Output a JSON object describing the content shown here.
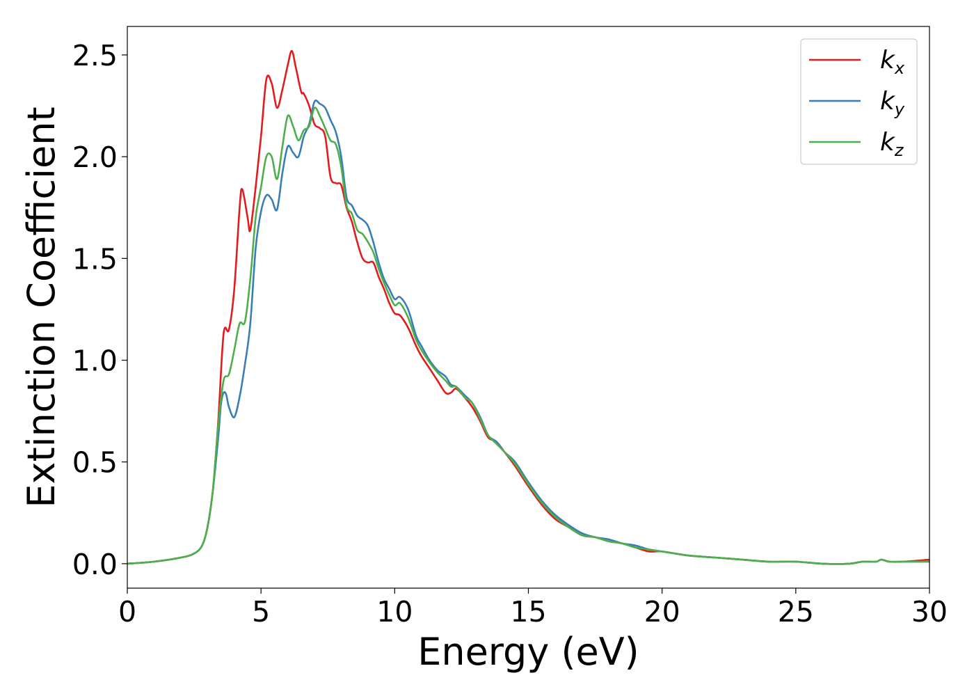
{
  "chart_data": {
    "type": "line",
    "title": "",
    "xlabel": "Energy (eV)",
    "ylabel": "Extinction Coefficient",
    "xlim": [
      0,
      30
    ],
    "ylim": [
      -0.12,
      2.64
    ],
    "xticks": [
      0,
      5,
      10,
      15,
      20,
      25,
      30
    ],
    "xtick_labels": [
      "0",
      "5",
      "10",
      "15",
      "20",
      "25",
      "30"
    ],
    "yticks": [
      0.0,
      0.5,
      1.0,
      1.5,
      2.0,
      2.5
    ],
    "ytick_labels": [
      "0.0",
      "0.5",
      "1.0",
      "1.5",
      "2.0",
      "2.5"
    ],
    "grid": false,
    "legend_position": "top-right",
    "series": [
      {
        "name": "k_x",
        "label_base": "k",
        "label_sub": "x",
        "color": "#e41a1c",
        "x": [
          0,
          1,
          2,
          2.5,
          2.8,
          3.0,
          3.2,
          3.4,
          3.6,
          3.8,
          4.0,
          4.2,
          4.3,
          4.5,
          4.6,
          4.8,
          5.0,
          5.2,
          5.4,
          5.6,
          5.8,
          6.0,
          6.15,
          6.3,
          6.5,
          6.6,
          6.8,
          7.0,
          7.2,
          7.4,
          7.6,
          7.8,
          8.0,
          8.2,
          8.4,
          8.6,
          8.8,
          9.0,
          9.2,
          9.4,
          9.6,
          9.8,
          10.0,
          10.2,
          10.5,
          10.8,
          11.0,
          11.3,
          11.6,
          11.9,
          12.1,
          12.3,
          12.6,
          12.9,
          13.2,
          13.5,
          13.8,
          14.1,
          14.5,
          15.0,
          15.5,
          16.0,
          16.5,
          17.0,
          17.5,
          18.0,
          18.5,
          19.0,
          19.5,
          20.0,
          21.0,
          22.0,
          23.0,
          24.0,
          25.0,
          26.0,
          27.0,
          27.5,
          28.0,
          28.2,
          28.5,
          29.0,
          30.0
        ],
        "y": [
          0.0,
          0.01,
          0.03,
          0.05,
          0.09,
          0.18,
          0.36,
          0.7,
          1.13,
          1.15,
          1.35,
          1.75,
          1.84,
          1.7,
          1.64,
          1.85,
          2.1,
          2.38,
          2.36,
          2.24,
          2.33,
          2.45,
          2.52,
          2.44,
          2.32,
          2.31,
          2.25,
          2.16,
          2.14,
          2.1,
          1.9,
          1.87,
          1.86,
          1.75,
          1.68,
          1.58,
          1.5,
          1.48,
          1.48,
          1.41,
          1.35,
          1.28,
          1.23,
          1.22,
          1.16,
          1.07,
          1.02,
          0.96,
          0.9,
          0.84,
          0.84,
          0.86,
          0.82,
          0.77,
          0.7,
          0.62,
          0.6,
          0.55,
          0.48,
          0.38,
          0.29,
          0.22,
          0.18,
          0.14,
          0.13,
          0.11,
          0.1,
          0.08,
          0.06,
          0.06,
          0.04,
          0.03,
          0.02,
          0.01,
          0.01,
          0.0,
          0.0,
          0.01,
          0.01,
          0.02,
          0.01,
          0.01,
          0.02
        ]
      },
      {
        "name": "k_y",
        "label_base": "k",
        "label_sub": "y",
        "color": "#377eb8",
        "x": [
          0,
          1,
          2,
          2.5,
          2.8,
          3.0,
          3.2,
          3.4,
          3.5,
          3.6,
          3.7,
          3.8,
          4.0,
          4.2,
          4.4,
          4.6,
          4.8,
          5.0,
          5.2,
          5.4,
          5.6,
          5.8,
          6.0,
          6.2,
          6.4,
          6.6,
          6.8,
          7.0,
          7.2,
          7.4,
          7.6,
          7.8,
          8.0,
          8.2,
          8.4,
          8.6,
          8.8,
          9.0,
          9.2,
          9.4,
          9.6,
          9.8,
          10.0,
          10.2,
          10.5,
          10.8,
          11.0,
          11.3,
          11.6,
          11.9,
          12.1,
          12.3,
          12.6,
          12.9,
          13.2,
          13.5,
          13.8,
          14.1,
          14.5,
          15.0,
          15.5,
          16.0,
          16.5,
          17.0,
          17.5,
          18.0,
          18.5,
          19.0,
          19.5,
          20.0,
          21.0,
          22.0,
          23.0,
          24.0,
          25.0,
          26.0,
          27.0,
          27.5,
          28.0,
          28.2,
          28.5,
          29.0,
          30.0
        ],
        "y": [
          0.0,
          0.01,
          0.03,
          0.05,
          0.09,
          0.18,
          0.36,
          0.62,
          0.78,
          0.84,
          0.83,
          0.77,
          0.72,
          0.82,
          0.98,
          1.18,
          1.55,
          1.73,
          1.81,
          1.79,
          1.74,
          1.92,
          2.05,
          2.02,
          2.0,
          2.1,
          2.16,
          2.27,
          2.26,
          2.24,
          2.18,
          2.12,
          2.0,
          1.8,
          1.76,
          1.71,
          1.69,
          1.66,
          1.58,
          1.48,
          1.4,
          1.35,
          1.3,
          1.31,
          1.25,
          1.12,
          1.07,
          1.0,
          0.95,
          0.92,
          0.88,
          0.87,
          0.83,
          0.79,
          0.72,
          0.63,
          0.6,
          0.55,
          0.5,
          0.4,
          0.31,
          0.24,
          0.19,
          0.15,
          0.13,
          0.12,
          0.1,
          0.09,
          0.07,
          0.06,
          0.04,
          0.03,
          0.02,
          0.01,
          0.01,
          0.0,
          0.0,
          0.01,
          0.01,
          0.02,
          0.01,
          0.01,
          0.01
        ]
      },
      {
        "name": "k_z",
        "label_base": "k",
        "label_sub": "z",
        "color": "#4daf4a",
        "x": [
          0,
          1,
          2,
          2.5,
          2.8,
          3.0,
          3.2,
          3.4,
          3.6,
          3.8,
          4.0,
          4.2,
          4.4,
          4.6,
          4.8,
          5.0,
          5.2,
          5.4,
          5.6,
          5.8,
          6.0,
          6.2,
          6.4,
          6.6,
          6.8,
          7.0,
          7.2,
          7.4,
          7.6,
          7.8,
          8.0,
          8.2,
          8.4,
          8.6,
          8.8,
          9.0,
          9.2,
          9.4,
          9.6,
          9.8,
          10.0,
          10.2,
          10.5,
          10.8,
          11.0,
          11.3,
          11.6,
          11.9,
          12.1,
          12.3,
          12.6,
          12.9,
          13.2,
          13.5,
          13.8,
          14.1,
          14.5,
          15.0,
          15.5,
          16.0,
          16.5,
          17.0,
          17.5,
          18.0,
          18.5,
          19.0,
          19.5,
          20.0,
          21.0,
          22.0,
          23.0,
          24.0,
          25.0,
          26.0,
          27.0,
          27.5,
          28.0,
          28.2,
          28.5,
          29.0,
          30.0
        ],
        "y": [
          0.0,
          0.01,
          0.03,
          0.05,
          0.09,
          0.18,
          0.36,
          0.68,
          0.9,
          0.93,
          1.05,
          1.18,
          1.19,
          1.4,
          1.7,
          1.85,
          2.0,
          2.0,
          1.89,
          2.05,
          2.2,
          2.15,
          2.08,
          2.13,
          2.15,
          2.24,
          2.2,
          2.14,
          2.08,
          2.06,
          1.95,
          1.76,
          1.72,
          1.64,
          1.62,
          1.58,
          1.53,
          1.45,
          1.38,
          1.32,
          1.27,
          1.28,
          1.21,
          1.1,
          1.05,
          0.99,
          0.94,
          0.9,
          0.87,
          0.87,
          0.82,
          0.79,
          0.71,
          0.63,
          0.59,
          0.55,
          0.49,
          0.39,
          0.3,
          0.23,
          0.18,
          0.14,
          0.13,
          0.11,
          0.1,
          0.08,
          0.07,
          0.06,
          0.04,
          0.03,
          0.02,
          0.01,
          0.01,
          0.0,
          0.0,
          0.01,
          0.01,
          0.02,
          0.01,
          0.01,
          0.01
        ]
      }
    ]
  }
}
